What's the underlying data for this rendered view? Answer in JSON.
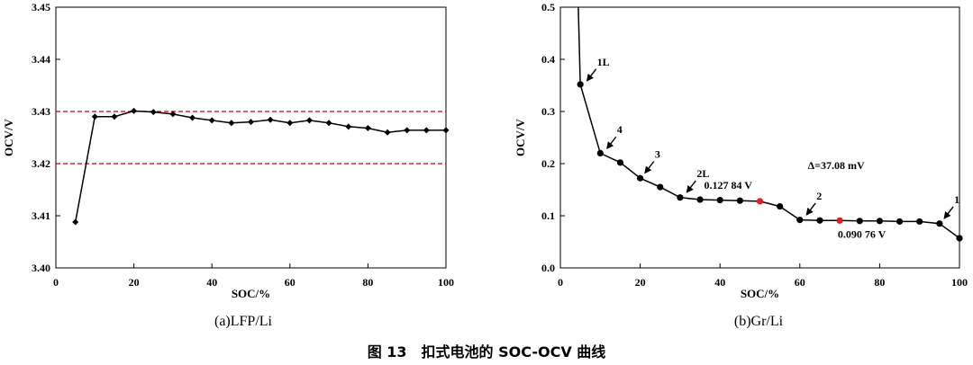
{
  "caption": "图 13　扣式电池的 SOC-OCV 曲线",
  "chart_data": [
    {
      "type": "line",
      "subtitle": "(a)LFP/Li",
      "xlabel": "SOC/%",
      "ylabel": "OCV/V",
      "xlim": [
        0,
        100
      ],
      "ylim": [
        3.4,
        3.45
      ],
      "xticks": [
        0,
        20,
        40,
        60,
        80,
        100
      ],
      "yticks": [
        3.4,
        3.41,
        3.42,
        3.43,
        3.44,
        3.45
      ],
      "ytick_labels": [
        "3.40",
        "3.41",
        "3.42",
        "3.43",
        "3.44",
        "3.45"
      ],
      "marker": "diamond",
      "series": [
        {
          "name": "LFP/Li",
          "x": [
            5,
            10,
            15,
            20,
            25,
            30,
            35,
            40,
            45,
            50,
            55,
            60,
            65,
            70,
            75,
            80,
            85,
            90,
            95,
            100
          ],
          "y": [
            3.4088,
            3.429,
            3.429,
            3.4301,
            3.4299,
            3.4295,
            3.4288,
            3.4283,
            3.4278,
            3.428,
            3.4284,
            3.4278,
            3.4283,
            3.4278,
            3.4271,
            3.4268,
            3.426,
            3.4264,
            3.4264,
            3.4264
          ]
        }
      ],
      "reference_lines": [
        3.43,
        3.42
      ],
      "reference_color": "#c00000"
    },
    {
      "type": "line",
      "subtitle": "(b)Gr/Li",
      "xlabel": "SOC/%",
      "ylabel": "OCV/V",
      "xlim": [
        0,
        100
      ],
      "ylim": [
        0,
        0.5
      ],
      "xticks": [
        0,
        20,
        40,
        60,
        80,
        100
      ],
      "yticks": [
        0,
        0.1,
        0.2,
        0.3,
        0.4,
        0.5
      ],
      "ytick_labels": [
        "0.0",
        "0.1",
        "0.2",
        "0.3",
        "0.4",
        "0.5"
      ],
      "marker": "circle",
      "series": [
        {
          "name": "Gr/Li",
          "x": [
            4.5,
            5,
            10,
            15,
            20,
            25,
            30,
            35,
            40,
            45,
            50,
            55,
            60,
            65,
            70,
            75,
            80,
            85,
            90,
            95,
            100
          ],
          "y": [
            0.5,
            0.352,
            0.22,
            0.202,
            0.172,
            0.155,
            0.135,
            0.131,
            0.13,
            0.129,
            0.1278,
            0.118,
            0.092,
            0.091,
            0.0908,
            0.09,
            0.09,
            0.089,
            0.089,
            0.085,
            0.057
          ],
          "marker_from_index": 1,
          "highlight_indices": [
            10,
            14
          ],
          "highlight_color": "#e02020"
        }
      ],
      "annotations": [
        {
          "text": "1L",
          "x": 6,
          "y": 0.352
        },
        {
          "text": "4",
          "x": 11,
          "y": 0.222
        },
        {
          "text": "3",
          "x": 20.5,
          "y": 0.175
        },
        {
          "text": "2L",
          "x": 31,
          "y": 0.138
        },
        {
          "text": "2",
          "x": 61,
          "y": 0.095
        },
        {
          "text": "1",
          "x": 95.5,
          "y": 0.088
        }
      ],
      "labels": [
        {
          "text": "0.127 84 V",
          "x": 36,
          "y": 0.152
        },
        {
          "text": "0.090 76 V",
          "x": 69.5,
          "y": 0.058
        },
        {
          "text": "Δ=37.08 mV",
          "x": 62,
          "y": 0.19
        }
      ]
    }
  ]
}
